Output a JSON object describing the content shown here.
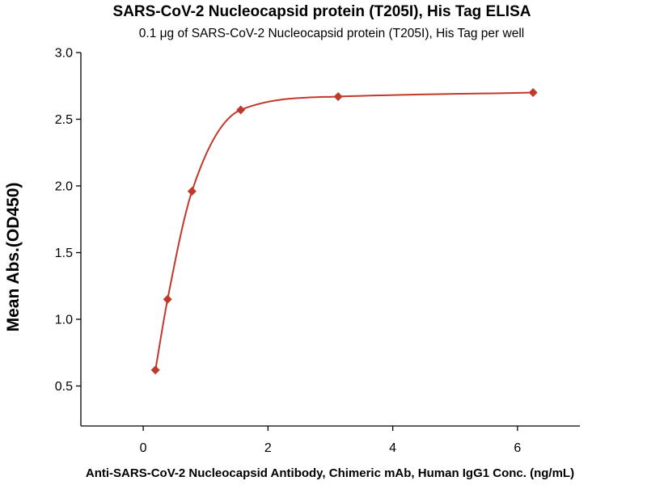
{
  "chart_data": {
    "type": "scatter",
    "title": "SARS-CoV-2 Nucleocapsid protein (T205I), His Tag ELISA",
    "subtitle": "0.1 μg of SARS-CoV-2 Nucleocapsid protein (T205I), His Tag per well",
    "xlabel": "Anti-SARS-CoV-2 Nucleocapsid Antibody, Chimeric mAb, Human IgG1 Conc. (ng/mL)",
    "ylabel": "Mean Abs.(OD450)",
    "xlim": [
      -1,
      7
    ],
    "ylim": [
      0.2,
      3.0
    ],
    "x_ticks": [
      0,
      2,
      4,
      6
    ],
    "x_tick_labels": [
      "0",
      "2",
      "4",
      "6"
    ],
    "y_ticks": [
      0.5,
      1.0,
      1.5,
      2.0,
      2.5,
      3.0
    ],
    "y_tick_labels": [
      "0.5",
      "1.0",
      "1.5",
      "2.0",
      "2.5",
      "3.0"
    ],
    "grid": false,
    "series": [
      {
        "x": [
          0.195,
          0.39,
          0.781,
          1.563,
          3.125,
          6.25
        ],
        "y": [
          0.62,
          1.15,
          1.96,
          2.57,
          2.67,
          2.7
        ],
        "marker": "diamond",
        "color": "#C0392B",
        "fit_curve": true
      }
    ]
  }
}
